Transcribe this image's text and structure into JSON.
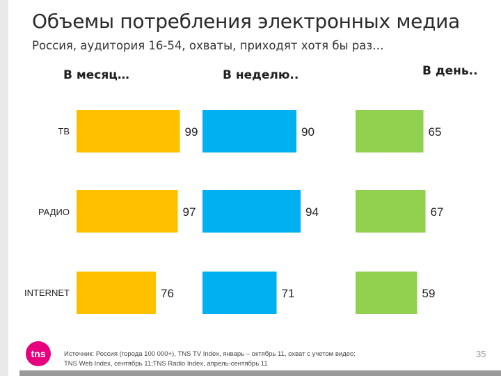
{
  "header": {
    "title": "Объемы потребления электронных медиа",
    "subtitle": "Россия, аудитория 16-54, охваты, приходят хотя бы раз…"
  },
  "columns": [
    {
      "label": "В месяц…"
    },
    {
      "label": "В неделю.."
    },
    {
      "label": "В день.."
    }
  ],
  "footer": {
    "logo": "tns",
    "source_line1": "Источник: Россия (города 100 000+), TNS TV Index, январь – октябрь 11, охват с учетом видео;",
    "source_line2": "TNS Web Index, сентябрь 11;TNS Radio Index, апрель-сентябрь 11",
    "page": "35"
  },
  "chart_data": [
    {
      "type": "bar",
      "orientation": "horizontal",
      "title": "В месяц…",
      "categories": [
        "ТВ",
        "РАДИО",
        "INTERNET"
      ],
      "values": [
        99,
        97,
        76
      ],
      "color": "#FFC000"
    },
    {
      "type": "bar",
      "orientation": "horizontal",
      "title": "В неделю..",
      "categories": [
        "ТВ",
        "РАДИО",
        "INTERNET"
      ],
      "values": [
        90,
        94,
        71
      ],
      "color": "#00B0F0"
    },
    {
      "type": "bar",
      "orientation": "horizontal",
      "title": "В день..",
      "categories": [
        "ТВ",
        "РАДИО",
        "INTERNET"
      ],
      "values": [
        65,
        67,
        59
      ],
      "color": "#92D050"
    }
  ]
}
